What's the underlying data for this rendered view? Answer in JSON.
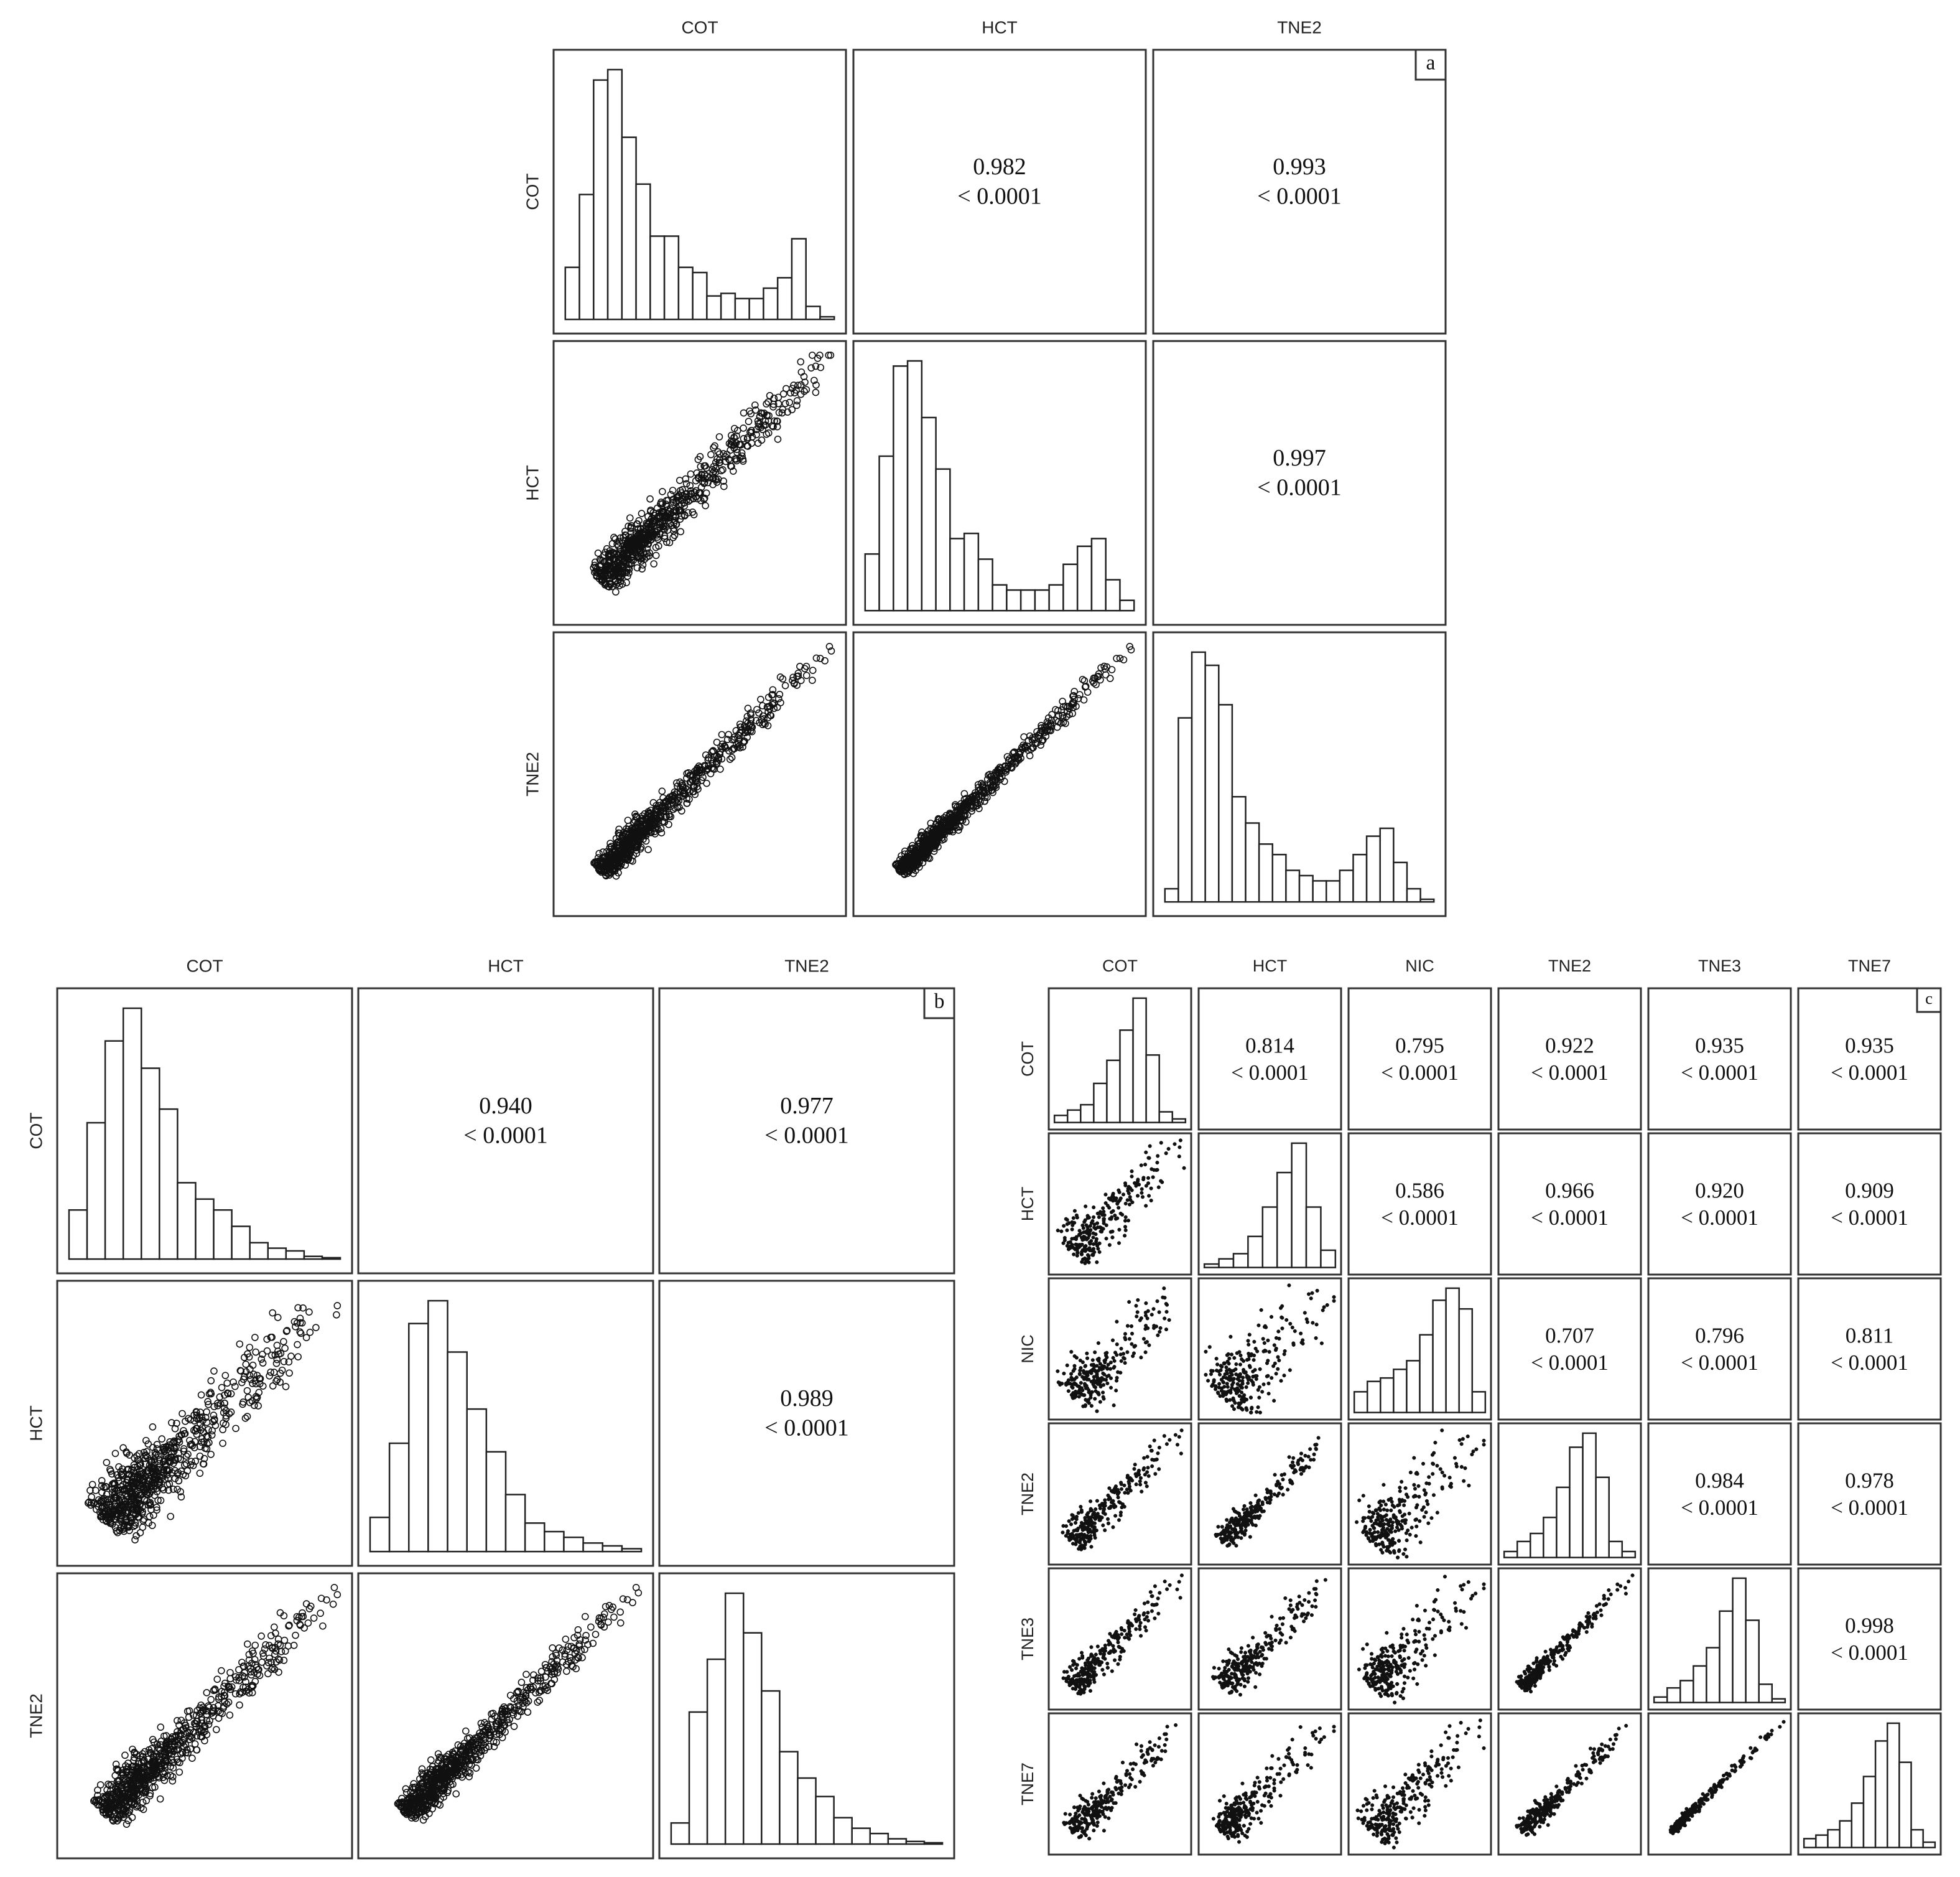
{
  "panels": [
    {
      "label": "a",
      "variables": [
        "COT",
        "HCT",
        "TNE2"
      ],
      "correlations": [
        [
          "0.982",
          "0.993"
        ],
        [
          "0.997"
        ]
      ],
      "p_value": "< 0.0001",
      "histograms": [
        [
          20,
          48,
          92,
          96,
          70,
          52,
          32,
          32,
          20,
          18,
          9,
          10,
          8,
          8,
          12,
          16,
          31,
          5,
          1
        ],
        [
          22,
          60,
          95,
          97,
          75,
          55,
          28,
          30,
          20,
          10,
          8,
          8,
          8,
          10,
          18,
          25,
          28,
          12,
          4
        ],
        [
          5,
          70,
          95,
          90,
          75,
          40,
          30,
          22,
          18,
          12,
          10,
          8,
          8,
          12,
          18,
          25,
          28,
          15,
          5,
          1
        ]
      ]
    },
    {
      "label": "b",
      "variables": [
        "COT",
        "HCT",
        "TNE2"
      ],
      "correlations": [
        [
          "0.940",
          "0.977"
        ],
        [
          "0.989"
        ]
      ],
      "p_value": "< 0.0001",
      "histograms": [
        [
          18,
          50,
          80,
          92,
          70,
          55,
          28,
          22,
          18,
          12,
          6,
          4,
          3,
          1,
          0.5
        ],
        [
          12,
          38,
          80,
          88,
          70,
          50,
          35,
          20,
          10,
          7,
          5,
          3,
          2,
          1
        ],
        [
          8,
          50,
          70,
          95,
          80,
          58,
          35,
          25,
          18,
          10,
          6,
          4,
          2,
          1,
          0.5
        ]
      ]
    },
    {
      "label": "c",
      "variables": [
        "COT",
        "HCT",
        "NIC",
        "TNE2",
        "TNE3",
        "TNE7"
      ],
      "correlations": [
        [
          "0.814",
          "0.795",
          "0.922",
          "0.935",
          "0.935"
        ],
        [
          "0.586",
          "0.966",
          "0.920",
          "0.909"
        ],
        [
          "0.707",
          "0.796",
          "0.811"
        ],
        [
          "0.984",
          "0.978"
        ],
        [
          "0.998"
        ]
      ],
      "p_value": "< 0.0001",
      "histograms": [
        [
          4,
          7,
          10,
          22,
          35,
          52,
          70,
          38,
          6,
          2
        ],
        [
          2,
          5,
          8,
          18,
          35,
          55,
          72,
          35,
          10
        ],
        [
          12,
          18,
          20,
          25,
          30,
          45,
          65,
          72,
          60,
          12
        ],
        [
          3,
          8,
          12,
          20,
          35,
          55,
          62,
          40,
          8,
          3
        ],
        [
          3,
          8,
          12,
          20,
          30,
          50,
          68,
          45,
          10,
          2
        ],
        [
          5,
          7,
          10,
          15,
          25,
          40,
          60,
          70,
          48,
          10,
          3
        ]
      ]
    }
  ]
}
